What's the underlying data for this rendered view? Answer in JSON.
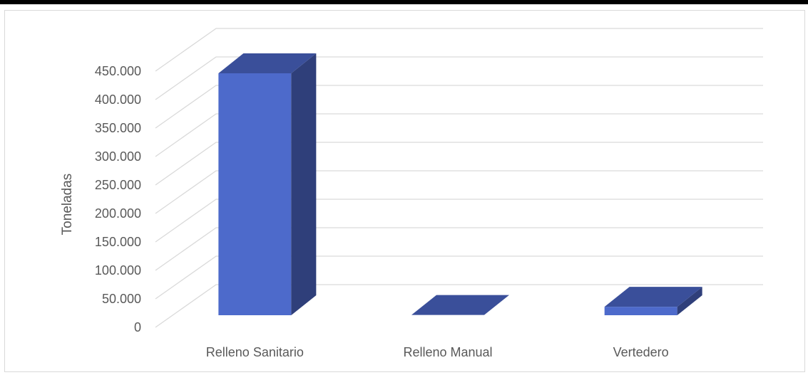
{
  "chart_data": {
    "type": "bar",
    "bar_style": "3d-column",
    "categories": [
      "Relleno Sanitario",
      "Relleno Manual",
      "Vertedero"
    ],
    "series": [
      {
        "values": [
          430000,
          500,
          15000
        ]
      }
    ],
    "ylabel": "Toneladas",
    "xlabel": "",
    "ylim": [
      0,
      450000
    ],
    "yticks": [
      {
        "value": 0,
        "label": "0"
      },
      {
        "value": 50000,
        "label": "50.000"
      },
      {
        "value": 100000,
        "label": "100.000"
      },
      {
        "value": 150000,
        "label": "150.000"
      },
      {
        "value": 200000,
        "label": "200.000"
      },
      {
        "value": 250000,
        "label": "250.000"
      },
      {
        "value": 300000,
        "label": "300.000"
      },
      {
        "value": 350000,
        "label": "350.000"
      },
      {
        "value": 400000,
        "label": "400.000"
      },
      {
        "value": 450000,
        "label": "450.000"
      }
    ],
    "grid": true,
    "legend": "none",
    "colors": {
      "bar_front": "#4d6acb",
      "bar_side": "#2f3f7a",
      "bar_top": "#3a4f9a",
      "grid": "#d9d9d9",
      "text": "#595959"
    }
  }
}
